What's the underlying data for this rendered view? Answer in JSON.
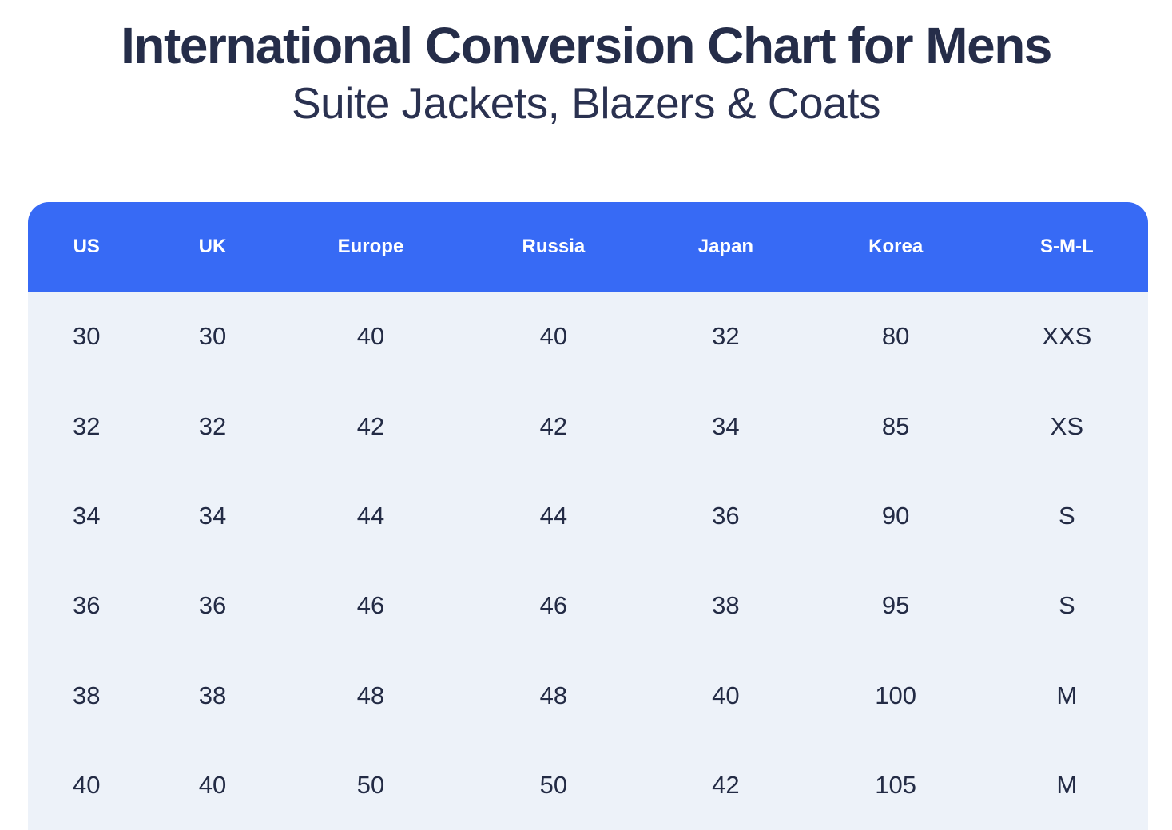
{
  "page": {
    "title": "International Conversion Chart for Mens",
    "subtitle": "Suite Jackets, Blazers & Coats"
  },
  "chart_data": {
    "type": "table",
    "title": "International Conversion Chart for Mens",
    "subtitle": "Suite Jackets, Blazers & Coats",
    "columns": [
      "US",
      "UK",
      "Europe",
      "Russia",
      "Japan",
      "Korea",
      "S-M-L"
    ],
    "rows": [
      [
        "30",
        "30",
        "40",
        "40",
        "32",
        "80",
        "XXS"
      ],
      [
        "32",
        "32",
        "42",
        "42",
        "34",
        "85",
        "XS"
      ],
      [
        "34",
        "34",
        "44",
        "44",
        "36",
        "90",
        "S"
      ],
      [
        "36",
        "36",
        "46",
        "46",
        "38",
        "95",
        "S"
      ],
      [
        "38",
        "38",
        "48",
        "48",
        "40",
        "100",
        "M"
      ],
      [
        "40",
        "40",
        "50",
        "50",
        "42",
        "105",
        "M"
      ]
    ],
    "layout": {
      "header_position": "top",
      "grid": false
    }
  },
  "colors": {
    "header_bg": "#376af5",
    "header_text": "#ffffff",
    "body_bg": "#edf2f9",
    "body_text": "#232b45",
    "title_text": "#252d49",
    "page_bg": "#ffffff"
  }
}
